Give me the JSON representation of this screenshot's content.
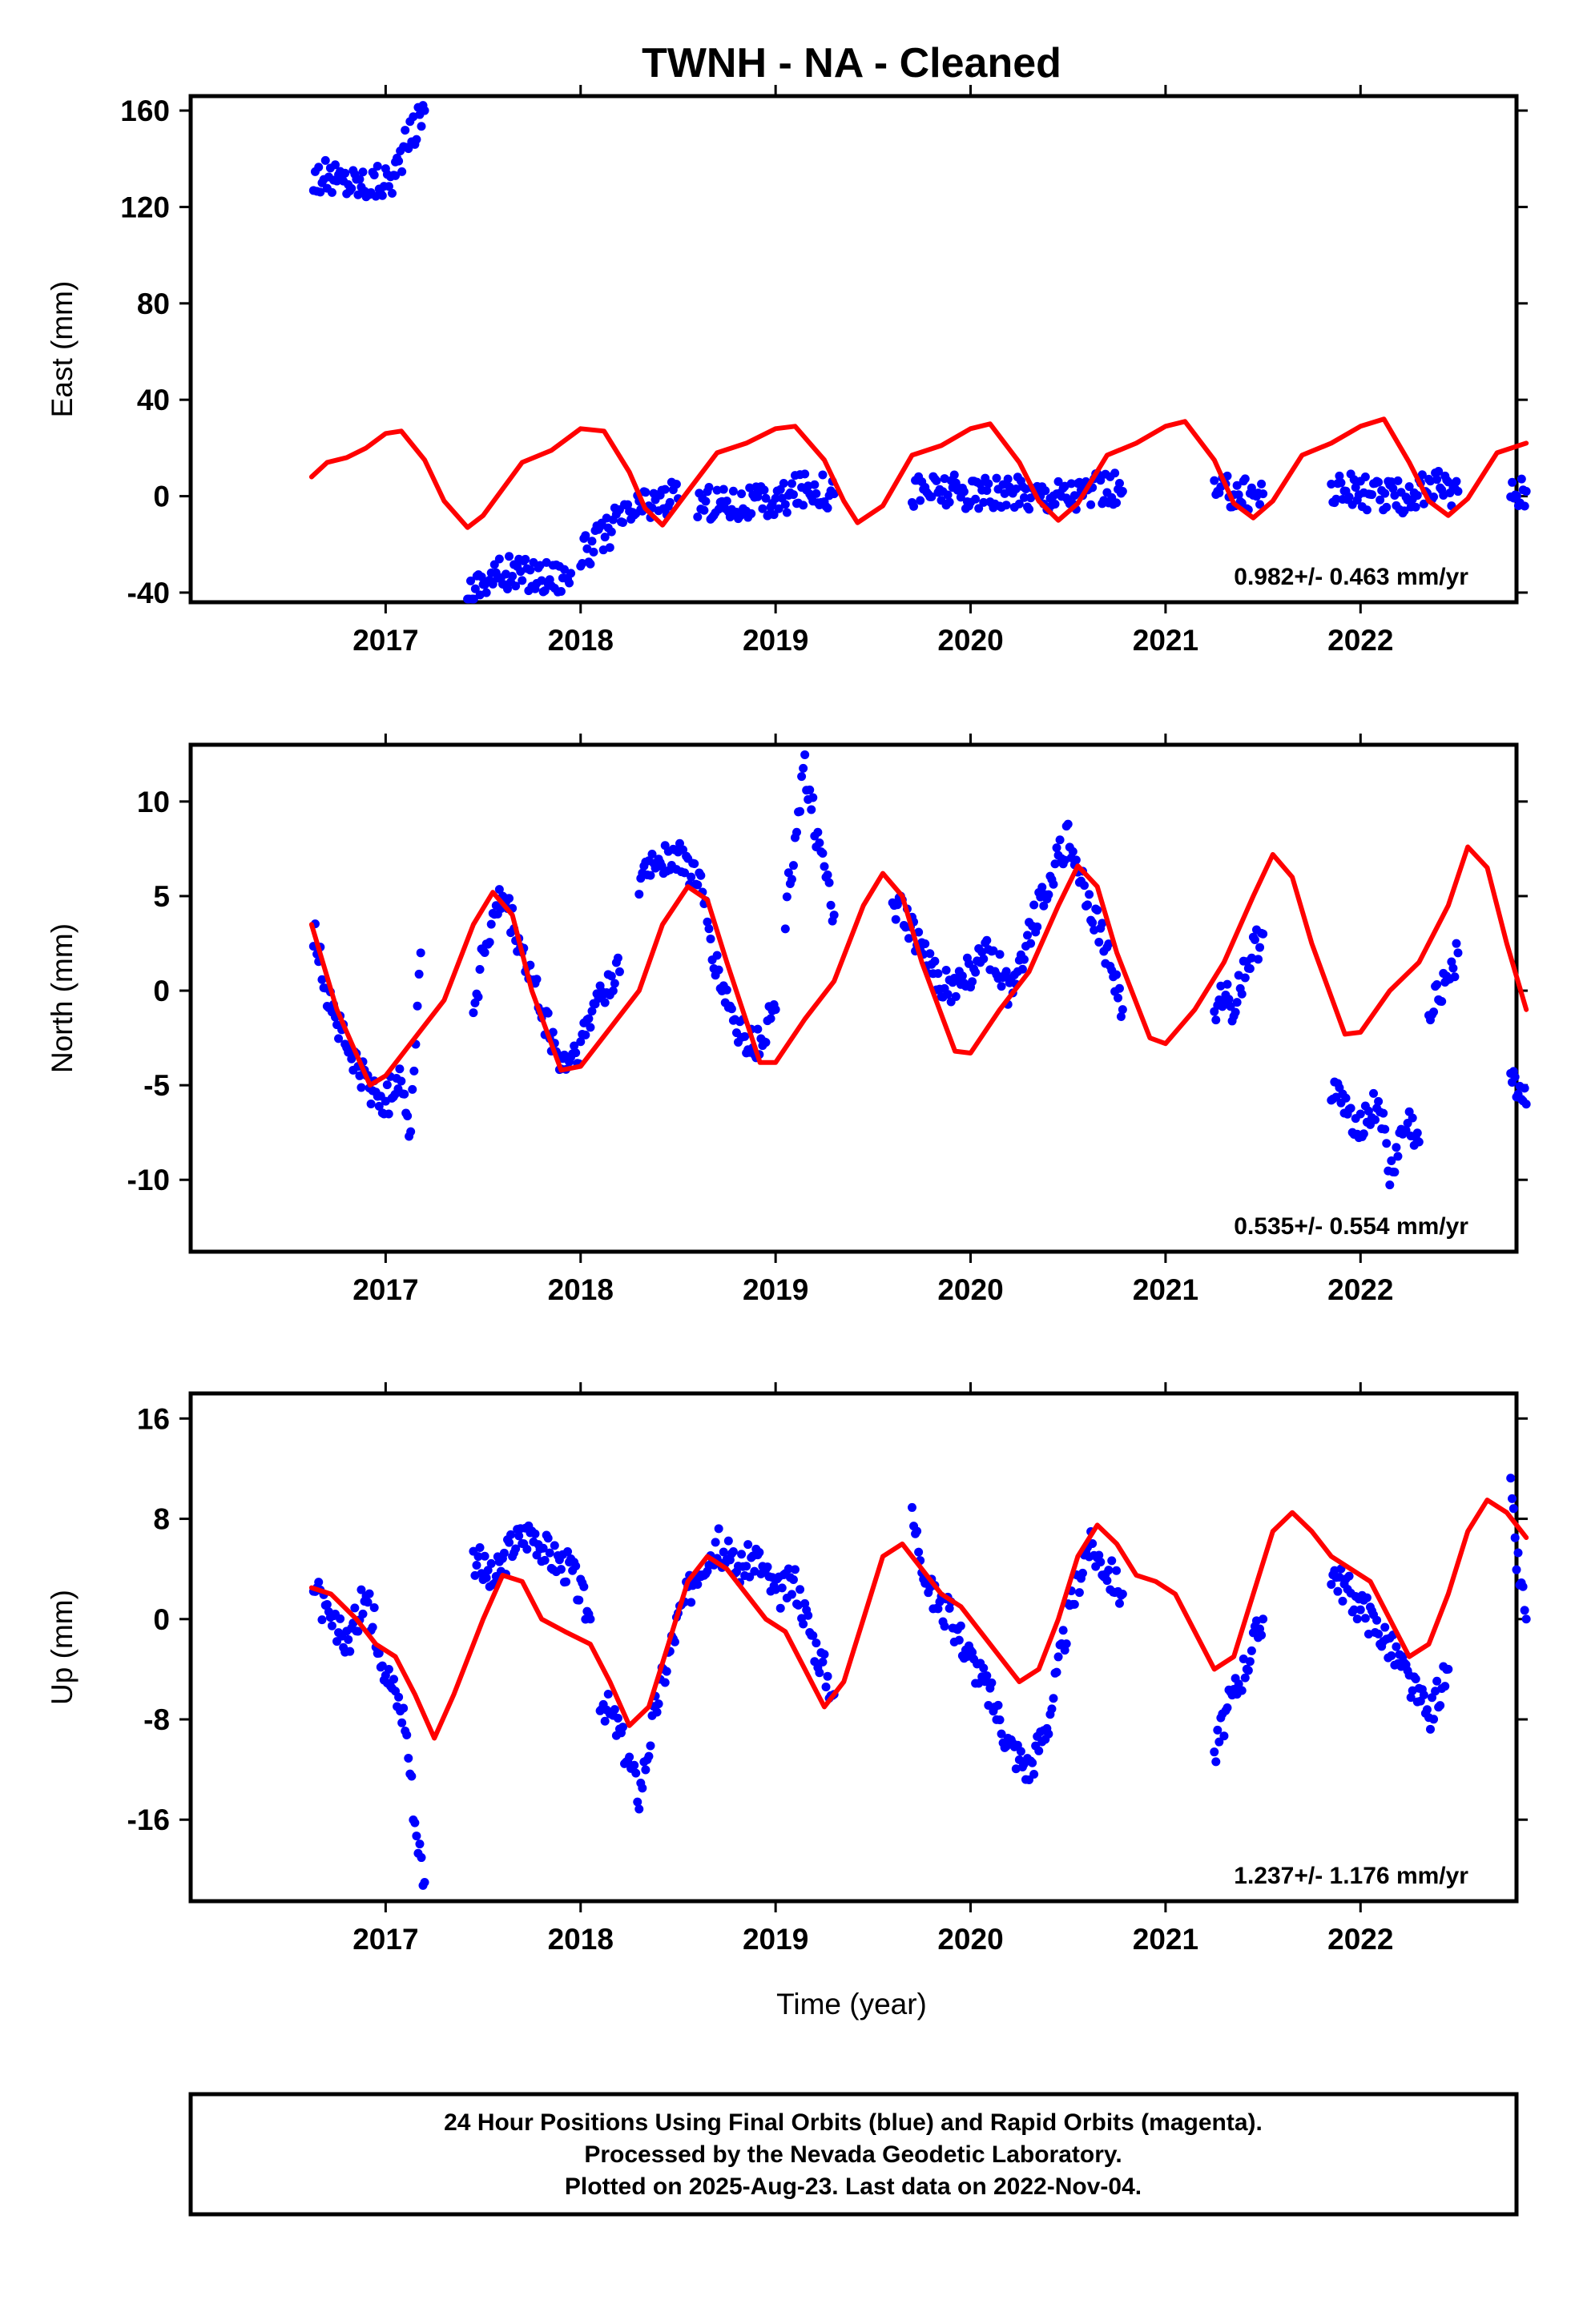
{
  "chart_data": {
    "title": "TWNH  - NA - Cleaned",
    "xlabel": "Time (year)",
    "x_ticks": [
      "2017",
      "2018",
      "2019",
      "2020",
      "2021",
      "2022"
    ],
    "xlim": [
      2016.0,
      2022.8
    ],
    "colors": {
      "observed": "#0000ff",
      "model": "#ff0000",
      "frame": "#000000"
    },
    "panels": [
      {
        "ylabel": "East (mm)",
        "ylim": [
          -44,
          166
        ],
        "yticks": [
          "160",
          "120",
          "80",
          "40",
          "0",
          "-40"
        ],
        "rate_label": "0.982+/- 0.463 mm/yr",
        "type": "scatter",
        "observed_segments": [
          {
            "x": [
              2016.63,
              2016.7,
              2016.8,
              2016.9,
              2017.0,
              2017.05
            ],
            "y": [
              133,
              132,
              131,
              130,
              131,
              133
            ]
          },
          {
            "x": [
              2017.05,
              2017.1,
              2017.15,
              2017.2
            ],
            "y": [
              136,
              145,
              153,
              160
            ]
          },
          {
            "x": [
              2017.42,
              2017.5,
              2017.6,
              2017.7,
              2017.8,
              2017.9,
              2017.95
            ],
            "y": [
              -40,
              -35,
              -32,
              -32,
              -33,
              -33,
              -32
            ]
          },
          {
            "x": [
              2018.0,
              2018.1,
              2018.2,
              2018.3,
              2018.4,
              2018.5
            ],
            "y": [
              -25,
              -18,
              -10,
              -5,
              -2,
              -1
            ]
          },
          {
            "x": [
              2018.6,
              2018.8,
              2019.0,
              2019.1,
              2019.2,
              2019.3
            ],
            "y": [
              -2,
              -3,
              -3,
              2,
              4,
              1
            ]
          },
          {
            "x": [
              2019.7,
              2019.9,
              2020.1,
              2020.3,
              2020.5,
              2020.7,
              2020.78
            ],
            "y": [
              3,
              2,
              0,
              1,
              1,
              3,
              2
            ]
          },
          {
            "x": [
              2021.25,
              2021.35,
              2021.45,
              2021.5
            ],
            "y": [
              1,
              2,
              1,
              1
            ]
          },
          {
            "x": [
              2021.85,
              2022.0,
              2022.1,
              2022.2,
              2022.3,
              2022.4,
              2022.5
            ],
            "y": [
              3,
              2,
              0,
              -1,
              2,
              3,
              2
            ]
          },
          {
            "x": [
              2022.77,
              2022.85
            ],
            "y": [
              2,
              2
            ]
          }
        ],
        "model": {
          "x": [
            2016.62,
            2016.7,
            2016.8,
            2016.9,
            2017.0,
            2017.08,
            2017.2,
            2017.3,
            2017.42,
            2017.5,
            2017.7,
            2017.85,
            2018.0,
            2018.12,
            2018.25,
            2018.33,
            2018.42,
            2018.55,
            2018.7,
            2018.85,
            2019.0,
            2019.1,
            2019.25,
            2019.35,
            2019.42,
            2019.55,
            2019.7,
            2019.85,
            2020.0,
            2020.1,
            2020.25,
            2020.35,
            2020.45,
            2020.55,
            2020.7,
            2020.85,
            2021.0,
            2021.1,
            2021.25,
            2021.35,
            2021.45,
            2021.55,
            2021.7,
            2021.85,
            2022.0,
            2022.12,
            2022.25,
            2022.35,
            2022.45,
            2022.55,
            2022.7,
            2022.85
          ],
          "y": [
            8,
            14,
            16,
            20,
            26,
            27,
            15,
            -2,
            -13,
            -8,
            14,
            19,
            28,
            27,
            10,
            -5,
            -12,
            2,
            18,
            22,
            28,
            29,
            15,
            -2,
            -11,
            -4,
            17,
            21,
            28,
            30,
            14,
            -2,
            -10,
            -3,
            17,
            22,
            29,
            31,
            15,
            -3,
            -9,
            -2,
            17,
            22,
            29,
            32,
            14,
            -2,
            -8,
            -1,
            18,
            22
          ]
        }
      },
      {
        "ylabel": "North (mm)",
        "ylim": [
          -13.8,
          13
        ],
        "yticks": [
          "10",
          "5",
          "0",
          "-5",
          "-10"
        ],
        "rate_label": "0.535+/- 0.554 mm/yr",
        "type": "scatter",
        "observed_segments": [
          {
            "x": [
              2016.63,
              2016.7,
              2016.8,
              2016.9,
              2017.0,
              2017.08,
              2017.12,
              2017.18
            ],
            "y": [
              3,
              0,
              -3,
              -5,
              -6,
              -4,
              -8,
              2
            ]
          },
          {
            "x": [
              2017.45,
              2017.5,
              2017.6,
              2017.7,
              2017.8,
              2017.9,
              2018.0,
              2018.1,
              2018.2
            ],
            "y": [
              -1,
              2,
              5,
              2,
              -1,
              -4,
              -3,
              0,
              1
            ]
          },
          {
            "x": [
              2018.3,
              2018.4,
              2018.5,
              2018.6,
              2018.7,
              2018.8,
              2018.9,
              2019.0
            ],
            "y": [
              6,
              7,
              7,
              6,
              1,
              -2,
              -3,
              -1
            ]
          },
          {
            "x": [
              2019.05,
              2019.1,
              2019.15,
              2019.2,
              2019.25,
              2019.3
            ],
            "y": [
              4,
              8,
              12,
              9,
              6,
              4
            ]
          },
          {
            "x": [
              2019.6,
              2019.7,
              2019.8,
              2019.9,
              2020.0,
              2020.1,
              2020.2,
              2020.3,
              2020.4,
              2020.5,
              2020.6,
              2020.7,
              2020.78
            ],
            "y": [
              5,
              3,
              1,
              0,
              1,
              2,
              0,
              3,
              6,
              8,
              5,
              2,
              -1
            ]
          },
          {
            "x": [
              2021.25,
              2021.3,
              2021.35,
              2021.4,
              2021.45,
              2021.5
            ],
            "y": [
              -2,
              0,
              -1,
              1,
              2,
              3
            ]
          },
          {
            "x": [
              2021.85,
              2021.9,
              2022.0,
              2022.1,
              2022.15,
              2022.2,
              2022.25,
              2022.3
            ],
            "y": [
              -5,
              -6,
              -7,
              -6,
              -10,
              -8,
              -7,
              -8
            ]
          },
          {
            "x": [
              2022.35,
              2022.4,
              2022.45,
              2022.5
            ],
            "y": [
              -2,
              0,
              1,
              2
            ]
          },
          {
            "x": [
              2022.77,
              2022.8,
              2022.85
            ],
            "y": [
              -4,
              -5,
              -6
            ]
          }
        ],
        "model": {
          "x": [
            2016.62,
            2016.75,
            2016.92,
            2017.0,
            2017.15,
            2017.3,
            2017.45,
            2017.55,
            2017.65,
            2017.75,
            2017.9,
            2018.0,
            2018.15,
            2018.3,
            2018.42,
            2018.55,
            2018.65,
            2018.75,
            2018.92,
            2019.0,
            2019.15,
            2019.3,
            2019.45,
            2019.55,
            2019.65,
            2019.75,
            2019.92,
            2020.0,
            2020.15,
            2020.3,
            2020.45,
            2020.55,
            2020.65,
            2020.75,
            2020.92,
            2021.0,
            2021.15,
            2021.3,
            2021.45,
            2021.55,
            2021.65,
            2021.75,
            2021.92,
            2022.0,
            2022.15,
            2022.3,
            2022.45,
            2022.55,
            2022.65,
            2022.75,
            2022.85
          ],
          "y": [
            3.5,
            -1,
            -5,
            -4.5,
            -2.5,
            -0.5,
            3.5,
            5.2,
            4,
            0,
            -4.2,
            -4,
            -2,
            0,
            3.5,
            5.5,
            4.8,
            1.5,
            -3.8,
            -3.8,
            -1.5,
            0.5,
            4.5,
            6.2,
            5,
            1.5,
            -3.2,
            -3.3,
            -1,
            1,
            4.5,
            6.6,
            5.5,
            2,
            -2.5,
            -2.8,
            -1,
            1.5,
            5,
            7.2,
            6,
            2.5,
            -2.3,
            -2.2,
            0,
            1.5,
            4.5,
            7.6,
            6.5,
            2.5,
            -1
          ]
        }
      },
      {
        "ylabel": "Up (mm)",
        "ylim": [
          -22.5,
          18
        ],
        "yticks": [
          "16",
          "8",
          "0",
          "-8",
          "-16"
        ],
        "rate_label": "1.237+/- 1.176 mm/yr",
        "type": "scatter",
        "observed_segments": [
          {
            "x": [
              2016.63,
              2016.7,
              2016.8,
              2016.9,
              2017.0,
              2017.1,
              2017.15,
              2017.2
            ],
            "y": [
              3,
              0,
              -2,
              2,
              -4,
              -8,
              -16,
              -21
            ]
          },
          {
            "x": [
              2017.45,
              2017.55,
              2017.65,
              2017.75,
              2017.85,
              2017.95,
              2018.05
            ],
            "y": [
              5,
              3,
              6,
              7,
              5,
              4,
              0
            ]
          },
          {
            "x": [
              2018.1,
              2018.2,
              2018.3,
              2018.4,
              2018.5,
              2018.6,
              2018.7,
              2018.8,
              2018.9,
              2019.0,
              2019.1,
              2019.2,
              2019.3
            ],
            "y": [
              -6,
              -9,
              -14,
              -6,
              0,
              4,
              6,
              4,
              5,
              2,
              3,
              -2,
              -6
            ]
          },
          {
            "x": [
              2019.7,
              2019.8,
              2019.9,
              2020.0,
              2020.1,
              2020.2,
              2020.3,
              2020.4,
              2020.5,
              2020.6,
              2020.7,
              2020.78
            ],
            "y": [
              8,
              2,
              0,
              -3,
              -6,
              -10,
              -12,
              -8,
              0,
              6,
              4,
              2
            ]
          },
          {
            "x": [
              2021.25,
              2021.3,
              2021.35,
              2021.4,
              2021.45,
              2021.5
            ],
            "y": [
              -11,
              -8,
              -6,
              -4,
              -2,
              0
            ]
          },
          {
            "x": [
              2021.85,
              2021.95,
              2022.05,
              2022.15,
              2022.25,
              2022.35,
              2022.45
            ],
            "y": [
              4,
              2,
              0,
              -2,
              -5,
              -8,
              -4
            ]
          },
          {
            "x": [
              2022.77,
              2022.8,
              2022.85
            ],
            "y": [
              10,
              5,
              0
            ]
          }
        ],
        "model": {
          "x": [
            2016.62,
            2016.72,
            2016.85,
            2016.95,
            2017.05,
            2017.15,
            2017.25,
            2017.35,
            2017.5,
            2017.6,
            2017.7,
            2017.8,
            2017.92,
            2018.05,
            2018.15,
            2018.25,
            2018.35,
            2018.45,
            2018.55,
            2018.65,
            2018.75,
            2018.85,
            2018.95,
            2019.05,
            2019.15,
            2019.25,
            2019.35,
            2019.45,
            2019.55,
            2019.65,
            2019.75,
            2019.85,
            2019.95,
            2020.05,
            2020.15,
            2020.25,
            2020.35,
            2020.45,
            2020.55,
            2020.65,
            2020.75,
            2020.85,
            2020.95,
            2021.05,
            2021.15,
            2021.25,
            2021.35,
            2021.45,
            2021.55,
            2021.65,
            2021.75,
            2021.85,
            2021.95,
            2022.05,
            2022.15,
            2022.25,
            2022.35,
            2022.45,
            2022.55,
            2022.65,
            2022.75,
            2022.85
          ],
          "y": [
            2.5,
            2,
            0,
            -2,
            -3,
            -6,
            -9.5,
            -6,
            0,
            3.5,
            3,
            0,
            -1,
            -2,
            -5,
            -8.5,
            -7,
            -2,
            3,
            5,
            4,
            2,
            0,
            -1,
            -4,
            -7,
            -5,
            0,
            5,
            6,
            4,
            2,
            1,
            -1,
            -3,
            -5,
            -4,
            0,
            5,
            7.5,
            6,
            3.5,
            3,
            2,
            -1,
            -4,
            -3,
            2,
            7,
            8.5,
            7,
            5,
            4,
            3,
            0,
            -3,
            -2,
            2,
            7,
            9.5,
            8.5,
            6.5
          ]
        }
      }
    ],
    "footer": {
      "line1": "24 Hour Positions Using Final Orbits (blue) and Rapid Orbits (magenta).",
      "line2": "Processed by the Nevada Geodetic Laboratory.",
      "line3": "Plotted on 2025-Aug-23. Last data on 2022-Nov-04."
    }
  }
}
